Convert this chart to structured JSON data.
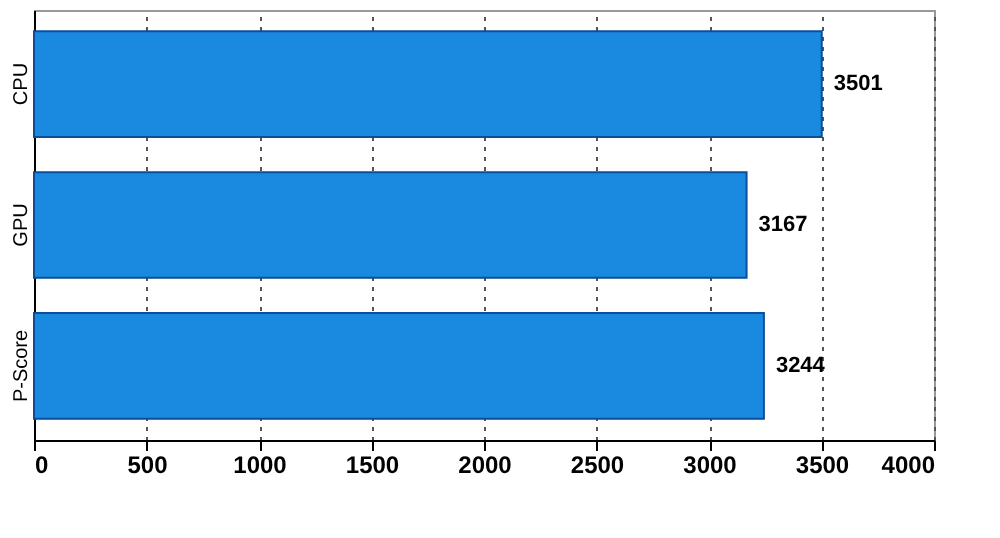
{
  "chart_data": {
    "type": "bar",
    "orientation": "horizontal",
    "categories": [
      "CPU",
      "GPU",
      "P-Score"
    ],
    "series": [
      {
        "color": "#1a8ae0",
        "values": [
          3501,
          3167,
          3244
        ]
      }
    ],
    "xlim": [
      0,
      4000
    ],
    "xticks": [
      0,
      500,
      1000,
      1500,
      2000,
      2500,
      3000,
      3500,
      4000
    ],
    "grid": "x",
    "data_labels": true
  }
}
